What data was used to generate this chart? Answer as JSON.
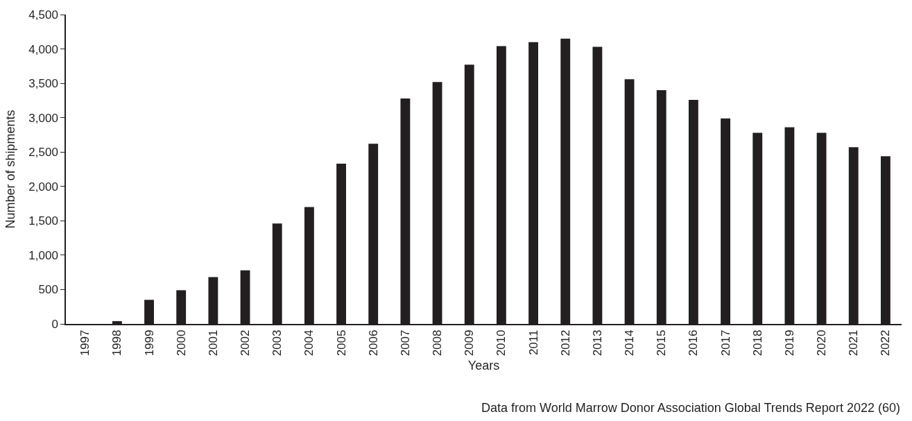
{
  "chart_data": {
    "type": "bar",
    "xlabel": "Years",
    "ylabel": "Number of shipments",
    "categories": [
      "1997",
      "1998",
      "1999",
      "2000",
      "2001",
      "2002",
      "2003",
      "2004",
      "2005",
      "2006",
      "2007",
      "2008",
      "2009",
      "2010",
      "2011",
      "2012",
      "2013",
      "2014",
      "2015",
      "2016",
      "2017",
      "2018",
      "2019",
      "2020",
      "2021",
      "2022"
    ],
    "values": [
      0,
      40,
      350,
      490,
      680,
      780,
      1460,
      1700,
      2330,
      2620,
      3280,
      3520,
      3770,
      4040,
      4100,
      4150,
      4030,
      3560,
      3400,
      3260,
      2990,
      2780,
      2860,
      2780,
      2570,
      2440
    ],
    "color": "#231f20",
    "ylim": [
      0,
      4500
    ],
    "yticks": [
      {
        "value": 0,
        "label": "0"
      },
      {
        "value": 500,
        "label": "500"
      },
      {
        "value": 1000,
        "label": "1,000"
      },
      {
        "value": 1500,
        "label": "1,500"
      },
      {
        "value": 2000,
        "label": "2,000"
      },
      {
        "value": 2500,
        "label": "2,500"
      },
      {
        "value": 3000,
        "label": "3,000"
      },
      {
        "value": 3500,
        "label": "3,500"
      },
      {
        "value": 4000,
        "label": "4,000"
      },
      {
        "value": 4500,
        "label": "4,500"
      }
    ],
    "annotations": [
      "Data from World Marrow Donor Association Global Trends Report 2022 (60)"
    ]
  }
}
